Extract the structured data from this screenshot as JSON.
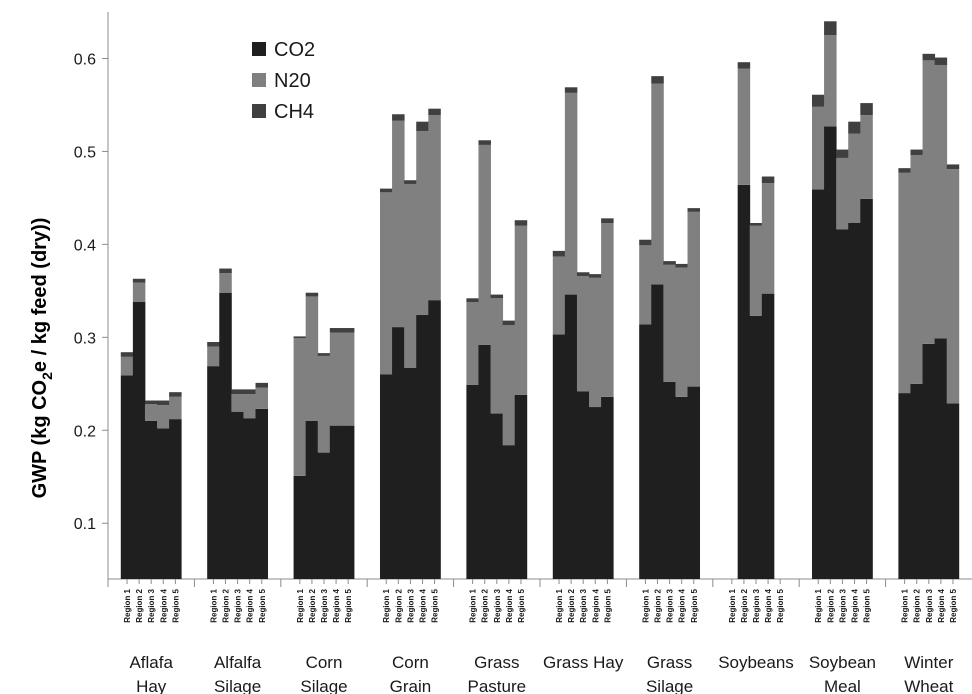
{
  "chart_data": {
    "type": "bar",
    "stacked": true,
    "title": "",
    "xlabel": "",
    "ylabel_parts": [
      "GWP (kg CO",
      "2",
      "e / kg feed (dry))"
    ],
    "ylim": [
      0.04,
      0.65
    ],
    "yticks": [
      0.1,
      0.2,
      0.3,
      0.4,
      0.5,
      0.6
    ],
    "legend_position": "top-left",
    "region_labels": [
      "Region 1",
      "Region 2",
      "Region 3",
      "Region 4",
      "Region 5"
    ],
    "groups": [
      {
        "label_lines": [
          "Aflafa",
          "Hay"
        ]
      },
      {
        "label_lines": [
          "Alfalfa",
          "Silage"
        ]
      },
      {
        "label_lines": [
          "Corn",
          "Silage"
        ]
      },
      {
        "label_lines": [
          "Corn",
          "Grain"
        ]
      },
      {
        "label_lines": [
          "Grass",
          "Pasture"
        ]
      },
      {
        "label_lines": [
          "Grass Hay"
        ]
      },
      {
        "label_lines": [
          "Grass",
          "Silage"
        ]
      },
      {
        "label_lines": [
          "Soybeans"
        ]
      },
      {
        "label_lines": [
          "Soybean",
          "Meal"
        ]
      },
      {
        "label_lines": [
          "Winter",
          "Wheat"
        ]
      }
    ],
    "series": [
      {
        "name": "CO2",
        "color": "#1f1f1f",
        "values": [
          [
            0.219,
            0.298,
            0.17,
            0.162,
            0.172
          ],
          [
            0.229,
            0.308,
            0.18,
            0.173,
            0.183
          ],
          [
            0.111,
            0.17,
            0.136,
            0.165,
            0.165
          ],
          [
            0.22,
            0.271,
            0.227,
            0.284,
            0.3
          ],
          [
            0.209,
            0.252,
            0.178,
            0.144,
            0.198
          ],
          [
            0.263,
            0.306,
            0.202,
            0.185,
            0.196
          ],
          [
            0.274,
            0.317,
            0.212,
            0.196,
            0.207
          ],
          [
            null,
            0.424,
            0.283,
            0.307,
            null
          ],
          [
            0.419,
            0.487,
            0.376,
            0.383,
            0.409
          ],
          [
            0.2,
            0.21,
            0.253,
            0.259,
            0.189
          ]
        ]
      },
      {
        "name": "N20",
        "color": "#808080",
        "values": [
          [
            0.02,
            0.021,
            0.018,
            0.025,
            0.024
          ],
          [
            0.021,
            0.021,
            0.019,
            0.026,
            0.023
          ],
          [
            0.148,
            0.134,
            0.104,
            0.1,
            0.1
          ],
          [
            0.196,
            0.222,
            0.198,
            0.198,
            0.199
          ],
          [
            0.089,
            0.215,
            0.124,
            0.129,
            0.182
          ],
          [
            0.084,
            0.217,
            0.124,
            0.139,
            0.187
          ],
          [
            0.085,
            0.216,
            0.126,
            0.139,
            0.188
          ],
          [
            null,
            0.125,
            0.097,
            0.119,
            null
          ],
          [
            0.089,
            0.098,
            0.077,
            0.096,
            0.09
          ],
          [
            0.237,
            0.246,
            0.305,
            0.294,
            0.252
          ]
        ]
      },
      {
        "name": "CH4",
        "color": "#404040",
        "values": [
          [
            0.005,
            0.004,
            0.004,
            0.005,
            0.005
          ],
          [
            0.005,
            0.005,
            0.005,
            0.005,
            0.005
          ],
          [
            0.002,
            0.004,
            0.003,
            0.005,
            0.005
          ],
          [
            0.004,
            0.007,
            0.004,
            0.01,
            0.007
          ],
          [
            0.004,
            0.005,
            0.004,
            0.005,
            0.006
          ],
          [
            0.006,
            0.006,
            0.004,
            0.004,
            0.005
          ],
          [
            0.006,
            0.008,
            0.004,
            0.004,
            0.004
          ],
          [
            null,
            0.007,
            0.003,
            0.007,
            null
          ],
          [
            0.013,
            0.015,
            0.009,
            0.013,
            0.013
          ],
          [
            0.005,
            0.006,
            0.007,
            0.008,
            0.005
          ]
        ]
      }
    ]
  }
}
